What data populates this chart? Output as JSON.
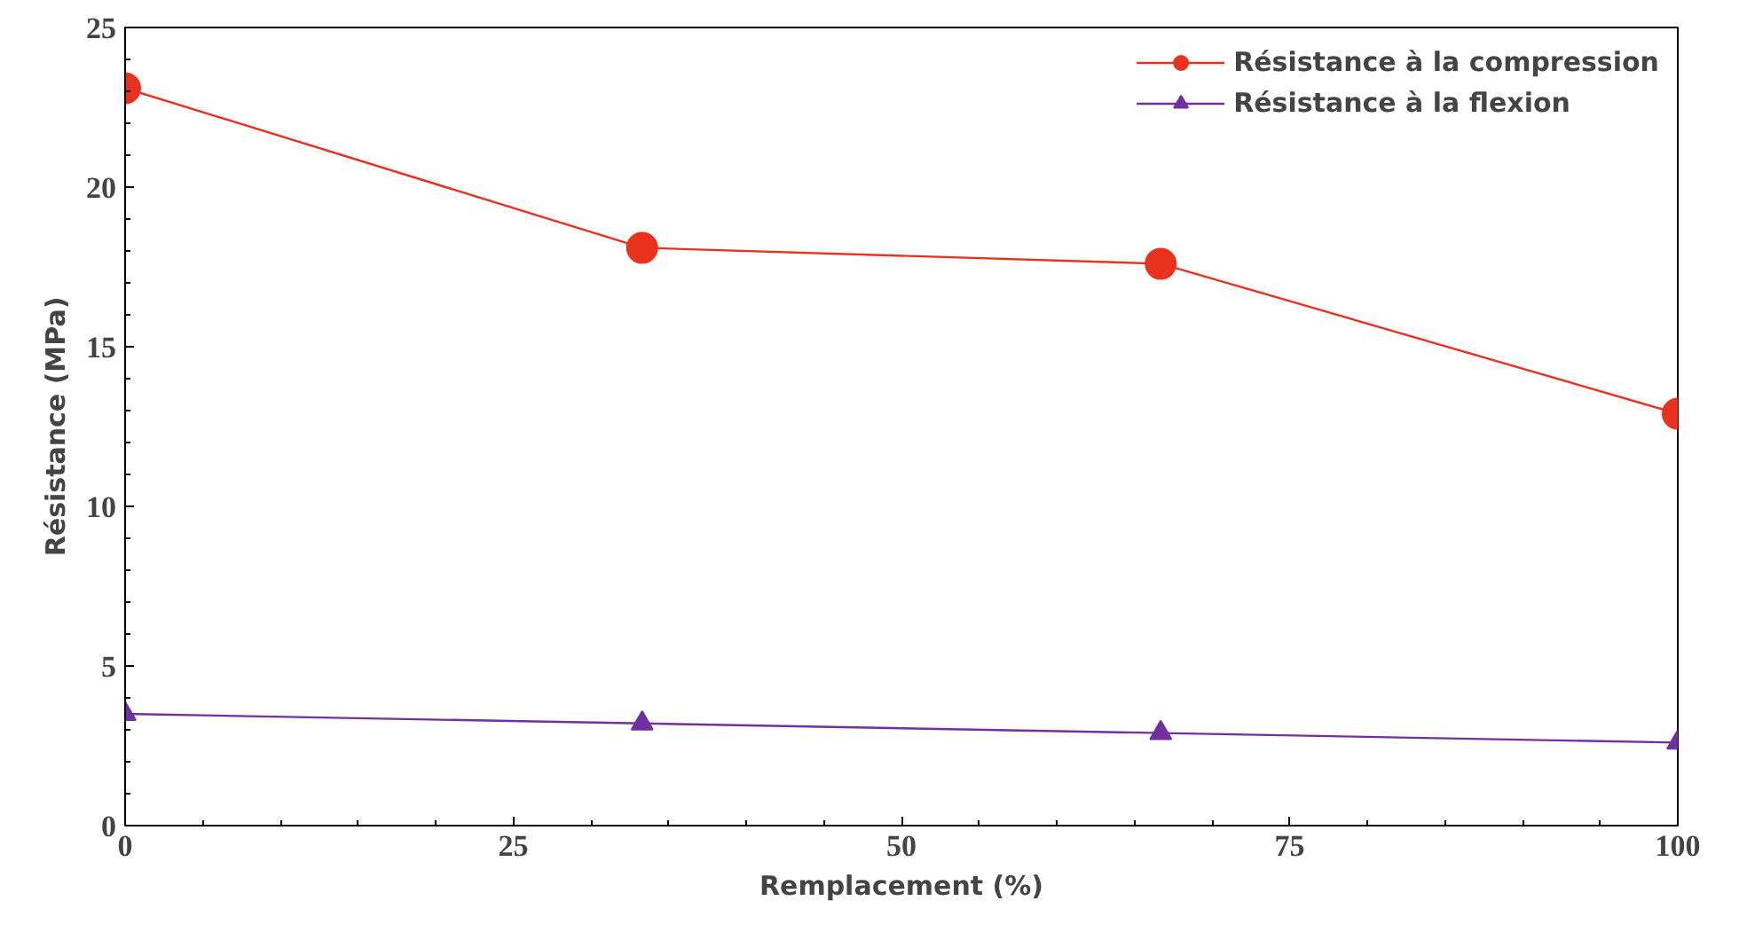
{
  "chart_data": {
    "type": "line",
    "xlabel": "Remplacement (%)",
    "ylabel": "Résistance (MPa)",
    "x": [
      0,
      33.3,
      66.7,
      100
    ],
    "series": [
      {
        "name": "Résistance à la compression",
        "color": "#e8321e",
        "values": [
          23.1,
          18.1,
          17.6,
          12.9
        ],
        "marker": "circle"
      },
      {
        "name": "Résistance à la flexion",
        "color": "#7030a0",
        "values": [
          3.5,
          3.2,
          2.9,
          2.6
        ],
        "marker": "triangle"
      }
    ],
    "xlim": [
      0,
      100
    ],
    "ylim": [
      0,
      25
    ],
    "xticks": [
      0,
      25,
      50,
      75,
      100
    ],
    "yticks": [
      0,
      5,
      10,
      15,
      20,
      25
    ],
    "grid": false,
    "legend": "top right",
    "line_style": "solid"
  }
}
